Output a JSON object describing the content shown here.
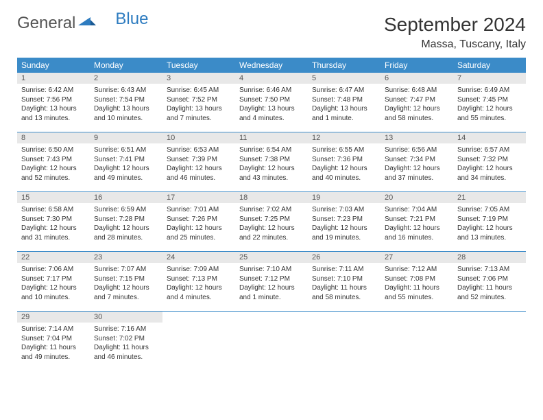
{
  "logo": {
    "text1": "General",
    "text2": "Blue"
  },
  "title": "September 2024",
  "location": "Massa, Tuscany, Italy",
  "colors": {
    "header_bg": "#3b8bc8",
    "header_text": "#ffffff",
    "daynum_bg": "#e8e8e8",
    "border": "#3b8bc8",
    "logo_blue": "#2e7cc0"
  },
  "weekdays": [
    "Sunday",
    "Monday",
    "Tuesday",
    "Wednesday",
    "Thursday",
    "Friday",
    "Saturday"
  ],
  "weeks": [
    [
      {
        "n": "1",
        "sunrise": "6:42 AM",
        "sunset": "7:56 PM",
        "daylight": "13 hours and 13 minutes."
      },
      {
        "n": "2",
        "sunrise": "6:43 AM",
        "sunset": "7:54 PM",
        "daylight": "13 hours and 10 minutes."
      },
      {
        "n": "3",
        "sunrise": "6:45 AM",
        "sunset": "7:52 PM",
        "daylight": "13 hours and 7 minutes."
      },
      {
        "n": "4",
        "sunrise": "6:46 AM",
        "sunset": "7:50 PM",
        "daylight": "13 hours and 4 minutes."
      },
      {
        "n": "5",
        "sunrise": "6:47 AM",
        "sunset": "7:48 PM",
        "daylight": "13 hours and 1 minute."
      },
      {
        "n": "6",
        "sunrise": "6:48 AM",
        "sunset": "7:47 PM",
        "daylight": "12 hours and 58 minutes."
      },
      {
        "n": "7",
        "sunrise": "6:49 AM",
        "sunset": "7:45 PM",
        "daylight": "12 hours and 55 minutes."
      }
    ],
    [
      {
        "n": "8",
        "sunrise": "6:50 AM",
        "sunset": "7:43 PM",
        "daylight": "12 hours and 52 minutes."
      },
      {
        "n": "9",
        "sunrise": "6:51 AM",
        "sunset": "7:41 PM",
        "daylight": "12 hours and 49 minutes."
      },
      {
        "n": "10",
        "sunrise": "6:53 AM",
        "sunset": "7:39 PM",
        "daylight": "12 hours and 46 minutes."
      },
      {
        "n": "11",
        "sunrise": "6:54 AM",
        "sunset": "7:38 PM",
        "daylight": "12 hours and 43 minutes."
      },
      {
        "n": "12",
        "sunrise": "6:55 AM",
        "sunset": "7:36 PM",
        "daylight": "12 hours and 40 minutes."
      },
      {
        "n": "13",
        "sunrise": "6:56 AM",
        "sunset": "7:34 PM",
        "daylight": "12 hours and 37 minutes."
      },
      {
        "n": "14",
        "sunrise": "6:57 AM",
        "sunset": "7:32 PM",
        "daylight": "12 hours and 34 minutes."
      }
    ],
    [
      {
        "n": "15",
        "sunrise": "6:58 AM",
        "sunset": "7:30 PM",
        "daylight": "12 hours and 31 minutes."
      },
      {
        "n": "16",
        "sunrise": "6:59 AM",
        "sunset": "7:28 PM",
        "daylight": "12 hours and 28 minutes."
      },
      {
        "n": "17",
        "sunrise": "7:01 AM",
        "sunset": "7:26 PM",
        "daylight": "12 hours and 25 minutes."
      },
      {
        "n": "18",
        "sunrise": "7:02 AM",
        "sunset": "7:25 PM",
        "daylight": "12 hours and 22 minutes."
      },
      {
        "n": "19",
        "sunrise": "7:03 AM",
        "sunset": "7:23 PM",
        "daylight": "12 hours and 19 minutes."
      },
      {
        "n": "20",
        "sunrise": "7:04 AM",
        "sunset": "7:21 PM",
        "daylight": "12 hours and 16 minutes."
      },
      {
        "n": "21",
        "sunrise": "7:05 AM",
        "sunset": "7:19 PM",
        "daylight": "12 hours and 13 minutes."
      }
    ],
    [
      {
        "n": "22",
        "sunrise": "7:06 AM",
        "sunset": "7:17 PM",
        "daylight": "12 hours and 10 minutes."
      },
      {
        "n": "23",
        "sunrise": "7:07 AM",
        "sunset": "7:15 PM",
        "daylight": "12 hours and 7 minutes."
      },
      {
        "n": "24",
        "sunrise": "7:09 AM",
        "sunset": "7:13 PM",
        "daylight": "12 hours and 4 minutes."
      },
      {
        "n": "25",
        "sunrise": "7:10 AM",
        "sunset": "7:12 PM",
        "daylight": "12 hours and 1 minute."
      },
      {
        "n": "26",
        "sunrise": "7:11 AM",
        "sunset": "7:10 PM",
        "daylight": "11 hours and 58 minutes."
      },
      {
        "n": "27",
        "sunrise": "7:12 AM",
        "sunset": "7:08 PM",
        "daylight": "11 hours and 55 minutes."
      },
      {
        "n": "28",
        "sunrise": "7:13 AM",
        "sunset": "7:06 PM",
        "daylight": "11 hours and 52 minutes."
      }
    ],
    [
      {
        "n": "29",
        "sunrise": "7:14 AM",
        "sunset": "7:04 PM",
        "daylight": "11 hours and 49 minutes."
      },
      {
        "n": "30",
        "sunrise": "7:16 AM",
        "sunset": "7:02 PM",
        "daylight": "11 hours and 46 minutes."
      },
      null,
      null,
      null,
      null,
      null
    ]
  ],
  "labels": {
    "sunrise": "Sunrise:",
    "sunset": "Sunset:",
    "daylight": "Daylight:"
  }
}
